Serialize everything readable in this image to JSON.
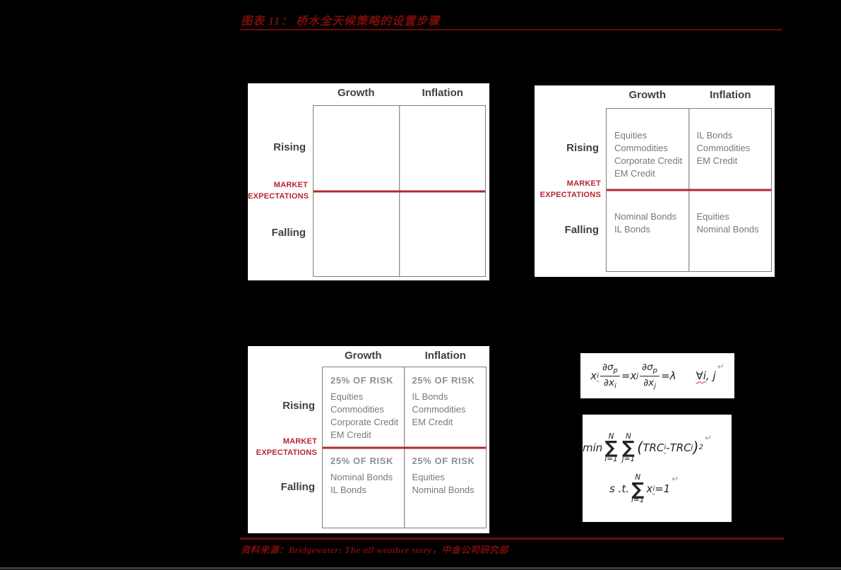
{
  "page": {
    "title": "图表 11： 桥水全天候策略的设置步骤",
    "source": "资料来源：Bridgewater: The all weather story，中金公司研究部"
  },
  "colors": {
    "background": "#000000",
    "panel": "#ffffff",
    "heading_red": "#7c0d08",
    "accent_red": "#b5272f",
    "table_border_gray": "#7e7e7e",
    "label_dark": "#3b4147",
    "cell_gray": "#77797d"
  },
  "matrix_common": {
    "col_headers": [
      "Growth",
      "Inflation"
    ],
    "row_labels": [
      "Rising",
      "Falling"
    ],
    "market_label": [
      "MARKET",
      "EXPECTATIONS"
    ]
  },
  "panel_assets": {
    "cells": {
      "rising_growth": [
        "Equities",
        "Commodities",
        "Corporate Credit",
        "EM Credit"
      ],
      "rising_inflation": [
        "IL Bonds",
        "Commodities",
        "EM Credit"
      ],
      "falling_growth": [
        "Nominal Bonds",
        "IL Bonds"
      ],
      "falling_inflation": [
        "Equities",
        "Nominal Bonds"
      ]
    }
  },
  "panel_risk": {
    "risk_label": "25% OF RISK",
    "cells": {
      "rising_growth": [
        "Equities",
        "Commodities",
        "Corporate Credit",
        "EM Credit"
      ],
      "rising_inflation": [
        "IL Bonds",
        "Commodities",
        "EM Credit"
      ],
      "falling_growth": [
        "Nominal Bonds",
        "IL Bonds"
      ],
      "falling_inflation": [
        "Equities",
        "Nominal Bonds"
      ]
    }
  },
  "formulas": {
    "risk_balance": {
      "x1": "x",
      "x1_sub": "i",
      "num": "∂σ",
      "num_sub": "p",
      "den1": "∂x",
      "den1_sub": "i",
      "eq1": "=",
      "x2": "x",
      "x2_sub": "j",
      "den2": "∂x",
      "den2_sub": "j",
      "eq2": "=λ",
      "forall_a": "∀i",
      "forall_b": ", j",
      "ret": "↵"
    },
    "objective": {
      "min": "min",
      "n": "N",
      "sigma": "∑",
      "lim_i": "i=1",
      "lim_j": "j=1",
      "open": "(",
      "trc1": "TRC",
      "trc1_sub": "i",
      "minus": "-",
      "trc2": "TRC",
      "trc2_sub": "j",
      "close": ")",
      "power": "2",
      "ret": "↵"
    },
    "constraint": {
      "st": "s .t.",
      "n": "N",
      "sigma": "∑",
      "lim": "i=1",
      "x": "x",
      "x_sub": "i",
      "eq": "=1",
      "ret": "↵"
    }
  }
}
